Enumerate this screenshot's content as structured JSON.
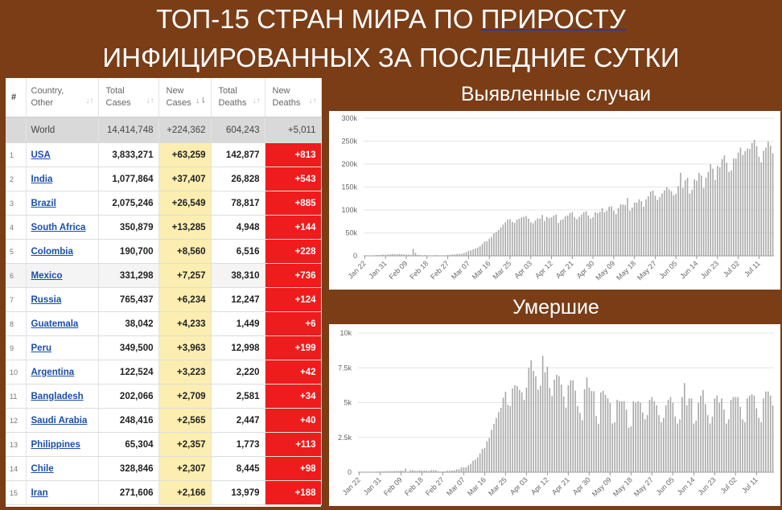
{
  "title": {
    "line1_part1": "ТОП-15 СТРАН МИРА ПО ",
    "line1_part2": "ПРИРОСТУ",
    "line2": "ИНФИЦИРОВАННЫХ ЗА ПОСЛЕДНИЕ СУТКИ"
  },
  "table": {
    "headers": {
      "idx": "#",
      "country_1": "Country,",
      "country_2": "Other",
      "total_cases_1": "Total",
      "total_cases_2": "Cases",
      "new_cases_1": "New",
      "new_cases_2": "Cases",
      "total_deaths_1": "Total",
      "total_deaths_2": "Deaths",
      "new_deaths_1": "New",
      "new_deaths_2": "Deaths"
    },
    "world": {
      "label": "World",
      "total_cases": "14,414,748",
      "new_cases": "+224,362",
      "total_deaths": "604,243",
      "new_deaths": "+5,011"
    },
    "rows": [
      {
        "idx": "1",
        "country": "USA",
        "total_cases": "3,833,271",
        "new_cases": "+63,259",
        "total_deaths": "142,877",
        "new_deaths": "+813"
      },
      {
        "idx": "2",
        "country": "India",
        "total_cases": "1,077,864",
        "new_cases": "+37,407",
        "total_deaths": "26,828",
        "new_deaths": "+543"
      },
      {
        "idx": "3",
        "country": "Brazil",
        "total_cases": "2,075,246",
        "new_cases": "+26,549",
        "total_deaths": "78,817",
        "new_deaths": "+885"
      },
      {
        "idx": "4",
        "country": "South Africa",
        "total_cases": "350,879",
        "new_cases": "+13,285",
        "total_deaths": "4,948",
        "new_deaths": "+144"
      },
      {
        "idx": "5",
        "country": "Colombia",
        "total_cases": "190,700",
        "new_cases": "+8,560",
        "total_deaths": "6,516",
        "new_deaths": "+228"
      },
      {
        "idx": "6",
        "country": "Mexico",
        "total_cases": "331,298",
        "new_cases": "+7,257",
        "total_deaths": "38,310",
        "new_deaths": "+736"
      },
      {
        "idx": "7",
        "country": "Russia",
        "total_cases": "765,437",
        "new_cases": "+6,234",
        "total_deaths": "12,247",
        "new_deaths": "+124"
      },
      {
        "idx": "8",
        "country": "Guatemala",
        "total_cases": "38,042",
        "new_cases": "+4,233",
        "total_deaths": "1,449",
        "new_deaths": "+6"
      },
      {
        "idx": "9",
        "country": "Peru",
        "total_cases": "349,500",
        "new_cases": "+3,963",
        "total_deaths": "12,998",
        "new_deaths": "+199"
      },
      {
        "idx": "10",
        "country": "Argentina",
        "total_cases": "122,524",
        "new_cases": "+3,223",
        "total_deaths": "2,220",
        "new_deaths": "+42"
      },
      {
        "idx": "11",
        "country": "Bangladesh",
        "total_cases": "202,066",
        "new_cases": "+2,709",
        "total_deaths": "2,581",
        "new_deaths": "+34"
      },
      {
        "idx": "12",
        "country": "Saudi Arabia",
        "total_cases": "248,416",
        "new_cases": "+2,565",
        "total_deaths": "2,447",
        "new_deaths": "+40"
      },
      {
        "idx": "13",
        "country": "Philippines",
        "total_cases": "65,304",
        "new_cases": "+2,357",
        "total_deaths": "1,773",
        "new_deaths": "+113"
      },
      {
        "idx": "14",
        "country": "Chile",
        "total_cases": "328,846",
        "new_cases": "+2,307",
        "total_deaths": "8,445",
        "new_deaths": "+98"
      },
      {
        "idx": "15",
        "country": "Iran",
        "total_cases": "271,606",
        "new_cases": "+2,166",
        "total_deaths": "13,979",
        "new_deaths": "+188"
      }
    ]
  },
  "colors": {
    "background": "#7a3d16",
    "bar": "#a8a8a8",
    "new_cases_bg": "#fbeeb0",
    "new_deaths_bg": "#ee1c1c",
    "link": "#1a4ea8"
  },
  "chart_data": [
    {
      "type": "bar",
      "title": "Выявленные случаи",
      "x_start": "Jan 22",
      "x_ticks": [
        "Jan 22",
        "Jan 31",
        "Feb 09",
        "Feb 18",
        "Feb 27",
        "Mar 07",
        "Mar 16",
        "Mar 25",
        "Apr 03",
        "Apr 12",
        "Apr 21",
        "Apr 30",
        "May 09",
        "May 18",
        "May 27",
        "Jun 05",
        "Jun 14",
        "Jun 23",
        "Jul 02",
        "Jul 11"
      ],
      "y_ticks": [
        "0",
        "50k",
        "100k",
        "150k",
        "200k",
        "250k",
        "300k"
      ],
      "ylim": [
        0,
        300000
      ],
      "grid": true,
      "values": [
        600,
        300,
        700,
        800,
        1000,
        1800,
        1900,
        2100,
        2600,
        2000,
        2800,
        3200,
        3900,
        3700,
        3200,
        3900,
        3700,
        3100,
        2700,
        2600,
        2100,
        15000,
        6500,
        2100,
        1900,
        1100,
        1600,
        900,
        1000,
        600,
        1200,
        1400,
        800,
        600,
        1100,
        900,
        1900,
        2100,
        2700,
        3100,
        4000,
        4300,
        4200,
        5700,
        7900,
        11000,
        11800,
        14000,
        16000,
        18000,
        21000,
        26000,
        31000,
        32000,
        37000,
        41000,
        49000,
        52000,
        56000,
        62000,
        68000,
        73000,
        79000,
        80000,
        74000,
        72000,
        79000,
        81000,
        84000,
        85000,
        87000,
        81000,
        73000,
        71000,
        77000,
        82000,
        81000,
        89000,
        76000,
        85000,
        82000,
        84000,
        88000,
        90000,
        72000,
        78000,
        80000,
        86000,
        88000,
        93000,
        95000,
        84000,
        80000,
        85000,
        90000,
        95000,
        97000,
        88000,
        81000,
        84000,
        95000,
        93000,
        96000,
        104000,
        95000,
        98000,
        107000,
        108000,
        98000,
        91000,
        104000,
        112000,
        112000,
        111000,
        126000,
        98000,
        105000,
        116000,
        116000,
        123000,
        119000,
        107000,
        123000,
        130000,
        140000,
        142000,
        131000,
        122000,
        128000,
        136000,
        143000,
        150000,
        145000,
        141000,
        132000,
        135000,
        152000,
        181000,
        148000,
        165000,
        170000,
        136000,
        144000,
        167000,
        164000,
        181000,
        175000,
        148000,
        170000,
        183000,
        200000,
        190000,
        165000,
        196000,
        193000,
        211000,
        219000,
        203000,
        183000,
        186000,
        212000,
        212000,
        225000,
        236000,
        220000,
        228000,
        234000,
        233000,
        246000,
        253000,
        239000,
        216000,
        204000,
        229000,
        236000,
        249000,
        240000,
        224000
      ]
    },
    {
      "type": "bar",
      "title": "Умершие",
      "x_start": "Jan 22",
      "x_ticks": [
        "Jan 22",
        "Jan 31",
        "Feb 09",
        "Feb 18",
        "Feb 27",
        "Mar 07",
        "Mar 16",
        "Mar 25",
        "Apr 03",
        "Apr 12",
        "Apr 21",
        "Apr 30",
        "May 09",
        "May 18",
        "May 27",
        "Jun 05",
        "Jun 14",
        "Jun 23",
        "Jul 02",
        "Jul 11"
      ],
      "y_ticks": [
        "0",
        "2.5k",
        "5k",
        "7.5k",
        "10k"
      ],
      "ylim": [
        0,
        10000
      ],
      "grid": true,
      "values": [
        17,
        1,
        8,
        16,
        14,
        26,
        26,
        42,
        46,
        45,
        57,
        64,
        66,
        73,
        73,
        86,
        89,
        97,
        108,
        97,
        254,
        13,
        143,
        143,
        106,
        98,
        139,
        114,
        118,
        110,
        97,
        155,
        149,
        150,
        65,
        41,
        51,
        57,
        109,
        104,
        124,
        137,
        212,
        213,
        347,
        349,
        343,
        494,
        607,
        820,
        899,
        1064,
        1350,
        1674,
        1742,
        2213,
        2460,
        3052,
        3468,
        3893,
        4314,
        4624,
        5356,
        5781,
        4854,
        4753,
        6023,
        6248,
        6179,
        5919,
        5740,
        5198,
        6076,
        7500,
        8048,
        7280,
        6893,
        5940,
        6220,
        8360,
        7180,
        7580,
        6050,
        5470,
        6640,
        7000,
        6900,
        6300,
        5440,
        4640,
        6240,
        6600,
        6600,
        5870,
        4750,
        4270,
        3730,
        5960,
        6810,
        6080,
        5830,
        5820,
        4050,
        3480,
        5740,
        5850,
        5550,
        5310,
        4970,
        3500,
        3600,
        5200,
        5100,
        5100,
        5100,
        4500,
        3200,
        3300,
        5100,
        5000,
        5100,
        5000,
        4300,
        3800,
        4100,
        5200,
        5400,
        5100,
        4800,
        4100,
        3600,
        3900,
        4800,
        5200,
        5400,
        5000,
        4000,
        3500,
        3800,
        5400,
        6400,
        4800,
        5300,
        5300,
        3500,
        3700,
        5000,
        5500,
        5900,
        4900,
        4100,
        3500,
        4000,
        5300,
        5500,
        5000,
        5300,
        4500,
        3500,
        3800,
        5200,
        5400,
        5400,
        5400,
        4700,
        3800,
        3600,
        5300,
        5500,
        5600,
        5500,
        4600,
        3900,
        3600,
        5300,
        5800,
        5800,
        5500,
        4800
      ]
    }
  ]
}
